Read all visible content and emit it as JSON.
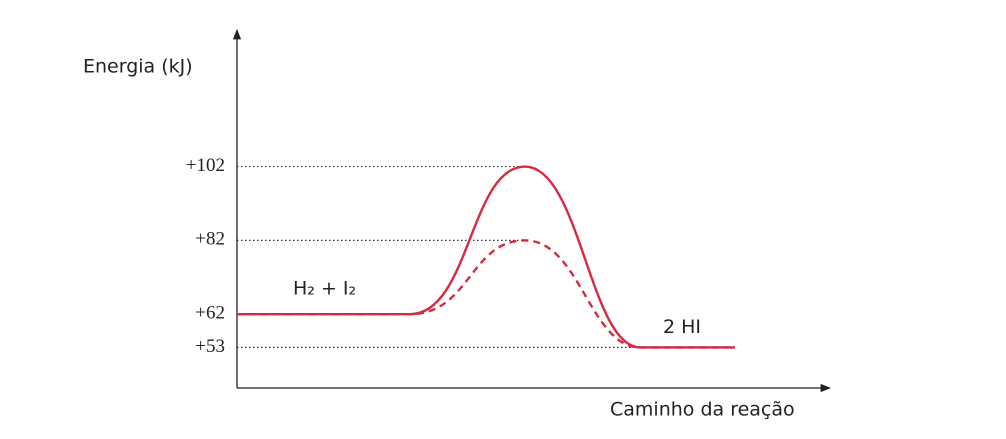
{
  "chart_data": {
    "type": "energy-profile",
    "y_label": "Energia (kJ)",
    "x_label": "Caminho da reação",
    "ylim": [
      42,
      139
    ],
    "yticks": [
      {
        "value": 102,
        "label": "+102"
      },
      {
        "value": 82,
        "label": "+82"
      },
      {
        "value": 62,
        "label": "+62"
      },
      {
        "value": 53,
        "label": "+53"
      }
    ],
    "reactants": {
      "label": "H₂ + I₂",
      "value": 62
    },
    "products": {
      "label": "2 HI",
      "value": 53
    },
    "peaks": [
      {
        "value": 102,
        "style": "solid"
      },
      {
        "value": 82,
        "style": "dashed"
      }
    ],
    "color": "#d42a42"
  }
}
